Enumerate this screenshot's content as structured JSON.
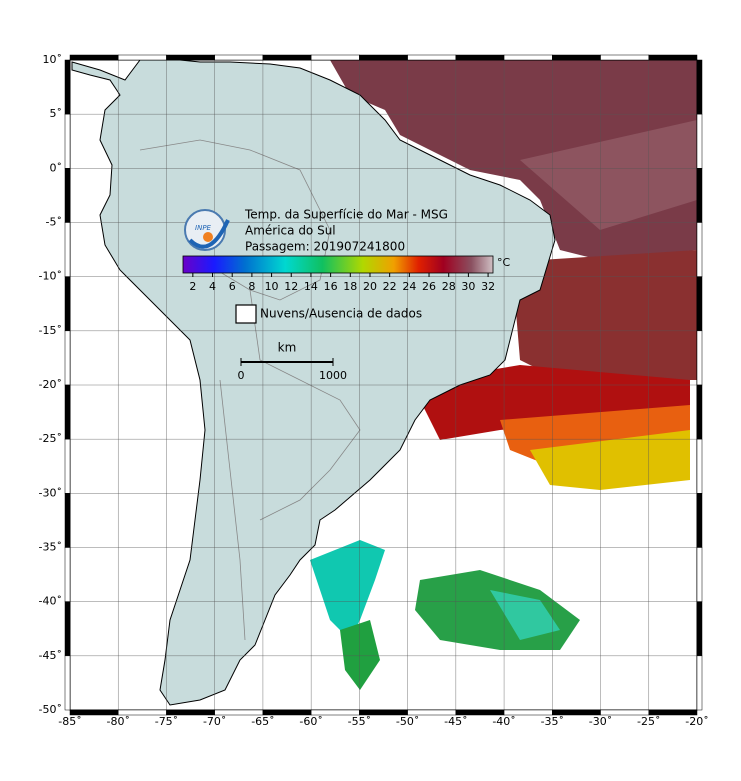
{
  "map": {
    "title_lines": [
      "Temp. da Superfície do Mar - MSG",
      "América do Sul",
      "Passagem: 201907241800"
    ],
    "xlim": [
      -85,
      -20
    ],
    "ylim": [
      -50,
      10
    ],
    "xticks": [
      {
        "value": -85,
        "label": "-85˚"
      },
      {
        "value": -80,
        "label": "-80˚"
      },
      {
        "value": -75,
        "label": "-75˚"
      },
      {
        "value": -70,
        "label": "-70˚"
      },
      {
        "value": -65,
        "label": "-65˚"
      },
      {
        "value": -60,
        "label": "-60˚"
      },
      {
        "value": -55,
        "label": "-55˚"
      },
      {
        "value": -50,
        "label": "-50˚"
      },
      {
        "value": -45,
        "label": "-45˚"
      },
      {
        "value": -40,
        "label": "-40˚"
      },
      {
        "value": -35,
        "label": "-35˚"
      },
      {
        "value": -30,
        "label": "-30˚"
      },
      {
        "value": -25,
        "label": "-25˚"
      },
      {
        "value": -20,
        "label": "-20˚"
      }
    ],
    "yticks": [
      {
        "value": 10,
        "label": "10˚"
      },
      {
        "value": 5,
        "label": "5˚"
      },
      {
        "value": 0,
        "label": "0˚"
      },
      {
        "value": -5,
        "label": "-5˚"
      },
      {
        "value": -10,
        "label": "-10˚"
      },
      {
        "value": -15,
        "label": "-15˚"
      },
      {
        "value": -20,
        "label": "-20˚"
      },
      {
        "value": -25,
        "label": "-25˚"
      },
      {
        "value": -30,
        "label": "-30˚"
      },
      {
        "value": -35,
        "label": "-35˚"
      },
      {
        "value": -40,
        "label": "-40˚"
      },
      {
        "value": -45,
        "label": "-45˚"
      },
      {
        "value": -50,
        "label": "-50˚"
      }
    ],
    "grid": true,
    "colorbar": {
      "lim": [
        1,
        32.5
      ],
      "ticks": [
        2,
        4,
        6,
        8,
        10,
        12,
        14,
        16,
        18,
        20,
        22,
        24,
        26,
        28,
        30,
        32
      ],
      "unit": "°C"
    },
    "legend": "Nuvens/Ausencia de dados",
    "scale": {
      "title": "km",
      "ticks": [
        0,
        1000
      ]
    },
    "logo": "INPE"
  }
}
